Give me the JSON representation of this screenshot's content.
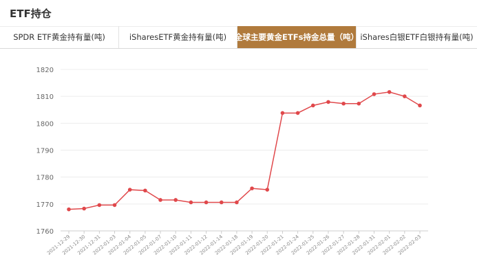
{
  "page": {
    "title": "ETF持仓"
  },
  "tabs": [
    {
      "label": "SPDR ETF黄金持有量(吨)",
      "active": false
    },
    {
      "label": "iSharesETF黄金持有量(吨)",
      "active": false
    },
    {
      "label": "全球主要黄金ETFs持金总量（吨）",
      "active": true
    },
    {
      "label": "iShares白银ETF白银持有量(吨)",
      "active": false
    }
  ],
  "colors": {
    "accent": "#b07a3c",
    "line": "#e0484b"
  },
  "chart_data": {
    "type": "line",
    "x": [
      "2021-12-29",
      "2021-12-30",
      "2021-12-31",
      "2022-01-03",
      "2022-01-04",
      "2022-01-05",
      "2022-01-07",
      "2022-01-10",
      "2022-01-11",
      "2022-01-12",
      "2022-01-14",
      "2022-01-18",
      "2022-01-19",
      "2022-01-20",
      "2022-01-21",
      "2022-01-24",
      "2022-01-25",
      "2022-01-26",
      "2022-01-27",
      "2022-01-28",
      "2022-01-31",
      "2022-02-01",
      "2022-02-02",
      "2022-02-03"
    ],
    "series": [
      {
        "values": [
          1768.0,
          1768.3,
          1769.6,
          1769.6,
          1775.3,
          1775.0,
          1771.5,
          1771.5,
          1770.6,
          1770.6,
          1770.6,
          1770.6,
          1775.8,
          1775.3,
          1803.8,
          1803.8,
          1806.6,
          1807.9,
          1807.3,
          1807.3,
          1810.8,
          1811.6,
          1810.0,
          1806.6
        ]
      }
    ],
    "ylim": [
      1760,
      1820
    ],
    "yticks": [
      1760,
      1770,
      1780,
      1790,
      1800,
      1810,
      1820
    ],
    "grid": true,
    "title": "",
    "xlabel": "",
    "ylabel": ""
  }
}
